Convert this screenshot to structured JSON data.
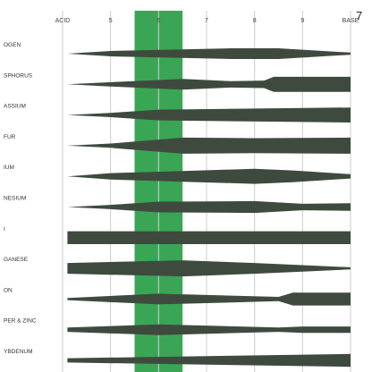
{
  "page_number": "7",
  "chart_data": {
    "type": "area",
    "title": "",
    "xlabel": "",
    "ylabel": "",
    "x_ticks": [
      "ACID",
      "5",
      "6",
      "7",
      "8",
      "9",
      "BASE"
    ],
    "x_tick_values": [
      4,
      5,
      6,
      7,
      8,
      9,
      10
    ],
    "xlim": [
      4,
      10
    ],
    "highlight": {
      "from": 5.5,
      "to": 6.5,
      "color": "#3aa655"
    },
    "grid": true,
    "colors": {
      "band": "#3f4a3f",
      "highlight": "#3aa655",
      "grid": "#cccccc"
    },
    "series": [
      {
        "name": "OGEN",
        "profile": [
          [
            4.1,
            0
          ],
          [
            5,
            0.25
          ],
          [
            7.5,
            0.5
          ],
          [
            8.5,
            0.5
          ],
          [
            10,
            0.1
          ]
        ]
      },
      {
        "name": "SPHORUS",
        "profile": [
          [
            4.1,
            0
          ],
          [
            5,
            0.2
          ],
          [
            6.5,
            0.5
          ],
          [
            7.5,
            0.3
          ],
          [
            8.2,
            0.35
          ],
          [
            8.4,
            0.7
          ],
          [
            10,
            0.7
          ]
        ]
      },
      {
        "name": "ASSIUM",
        "profile": [
          [
            4.1,
            0
          ],
          [
            5,
            0.2
          ],
          [
            6,
            0.5
          ],
          [
            10,
            0.7
          ]
        ]
      },
      {
        "name": "FUR",
        "profile": [
          [
            4.1,
            0
          ],
          [
            5,
            0.2
          ],
          [
            6.5,
            0.75
          ],
          [
            8,
            0.7
          ],
          [
            10,
            0.75
          ]
        ]
      },
      {
        "name": "IUM",
        "profile": [
          [
            4.1,
            0
          ],
          [
            5,
            0.3
          ],
          [
            6.5,
            0.5
          ],
          [
            8,
            0.7
          ],
          [
            8.8,
            0.55
          ],
          [
            10,
            0.2
          ]
        ]
      },
      {
        "name": "NESIUM",
        "profile": [
          [
            4.1,
            0
          ],
          [
            5,
            0.2
          ],
          [
            6,
            0.5
          ],
          [
            8,
            0.55
          ],
          [
            9,
            0.3
          ],
          [
            10,
            0.35
          ]
        ]
      },
      {
        "name": "I",
        "profile": [
          [
            4.1,
            0.6
          ],
          [
            10,
            0.6
          ]
        ]
      },
      {
        "name": "GANESE",
        "profile": [
          [
            4.1,
            0.5
          ],
          [
            6.5,
            0.75
          ],
          [
            8,
            0.5
          ],
          [
            9,
            0.3
          ],
          [
            10,
            0.1
          ]
        ]
      },
      {
        "name": "ON",
        "profile": [
          [
            4.1,
            0.1
          ],
          [
            6,
            0.5
          ],
          [
            8.5,
            0.2
          ],
          [
            8.8,
            0.6
          ],
          [
            10,
            0.6
          ]
        ]
      },
      {
        "name": "PER & ZINC",
        "profile": [
          [
            4.1,
            0.2
          ],
          [
            6,
            0.5
          ],
          [
            8.5,
            0.2
          ],
          [
            9,
            0.3
          ],
          [
            10,
            0.3
          ]
        ]
      },
      {
        "name": "YBDENUM",
        "profile": [
          [
            4.1,
            0.2
          ],
          [
            10,
            0.6
          ]
        ]
      }
    ]
  }
}
